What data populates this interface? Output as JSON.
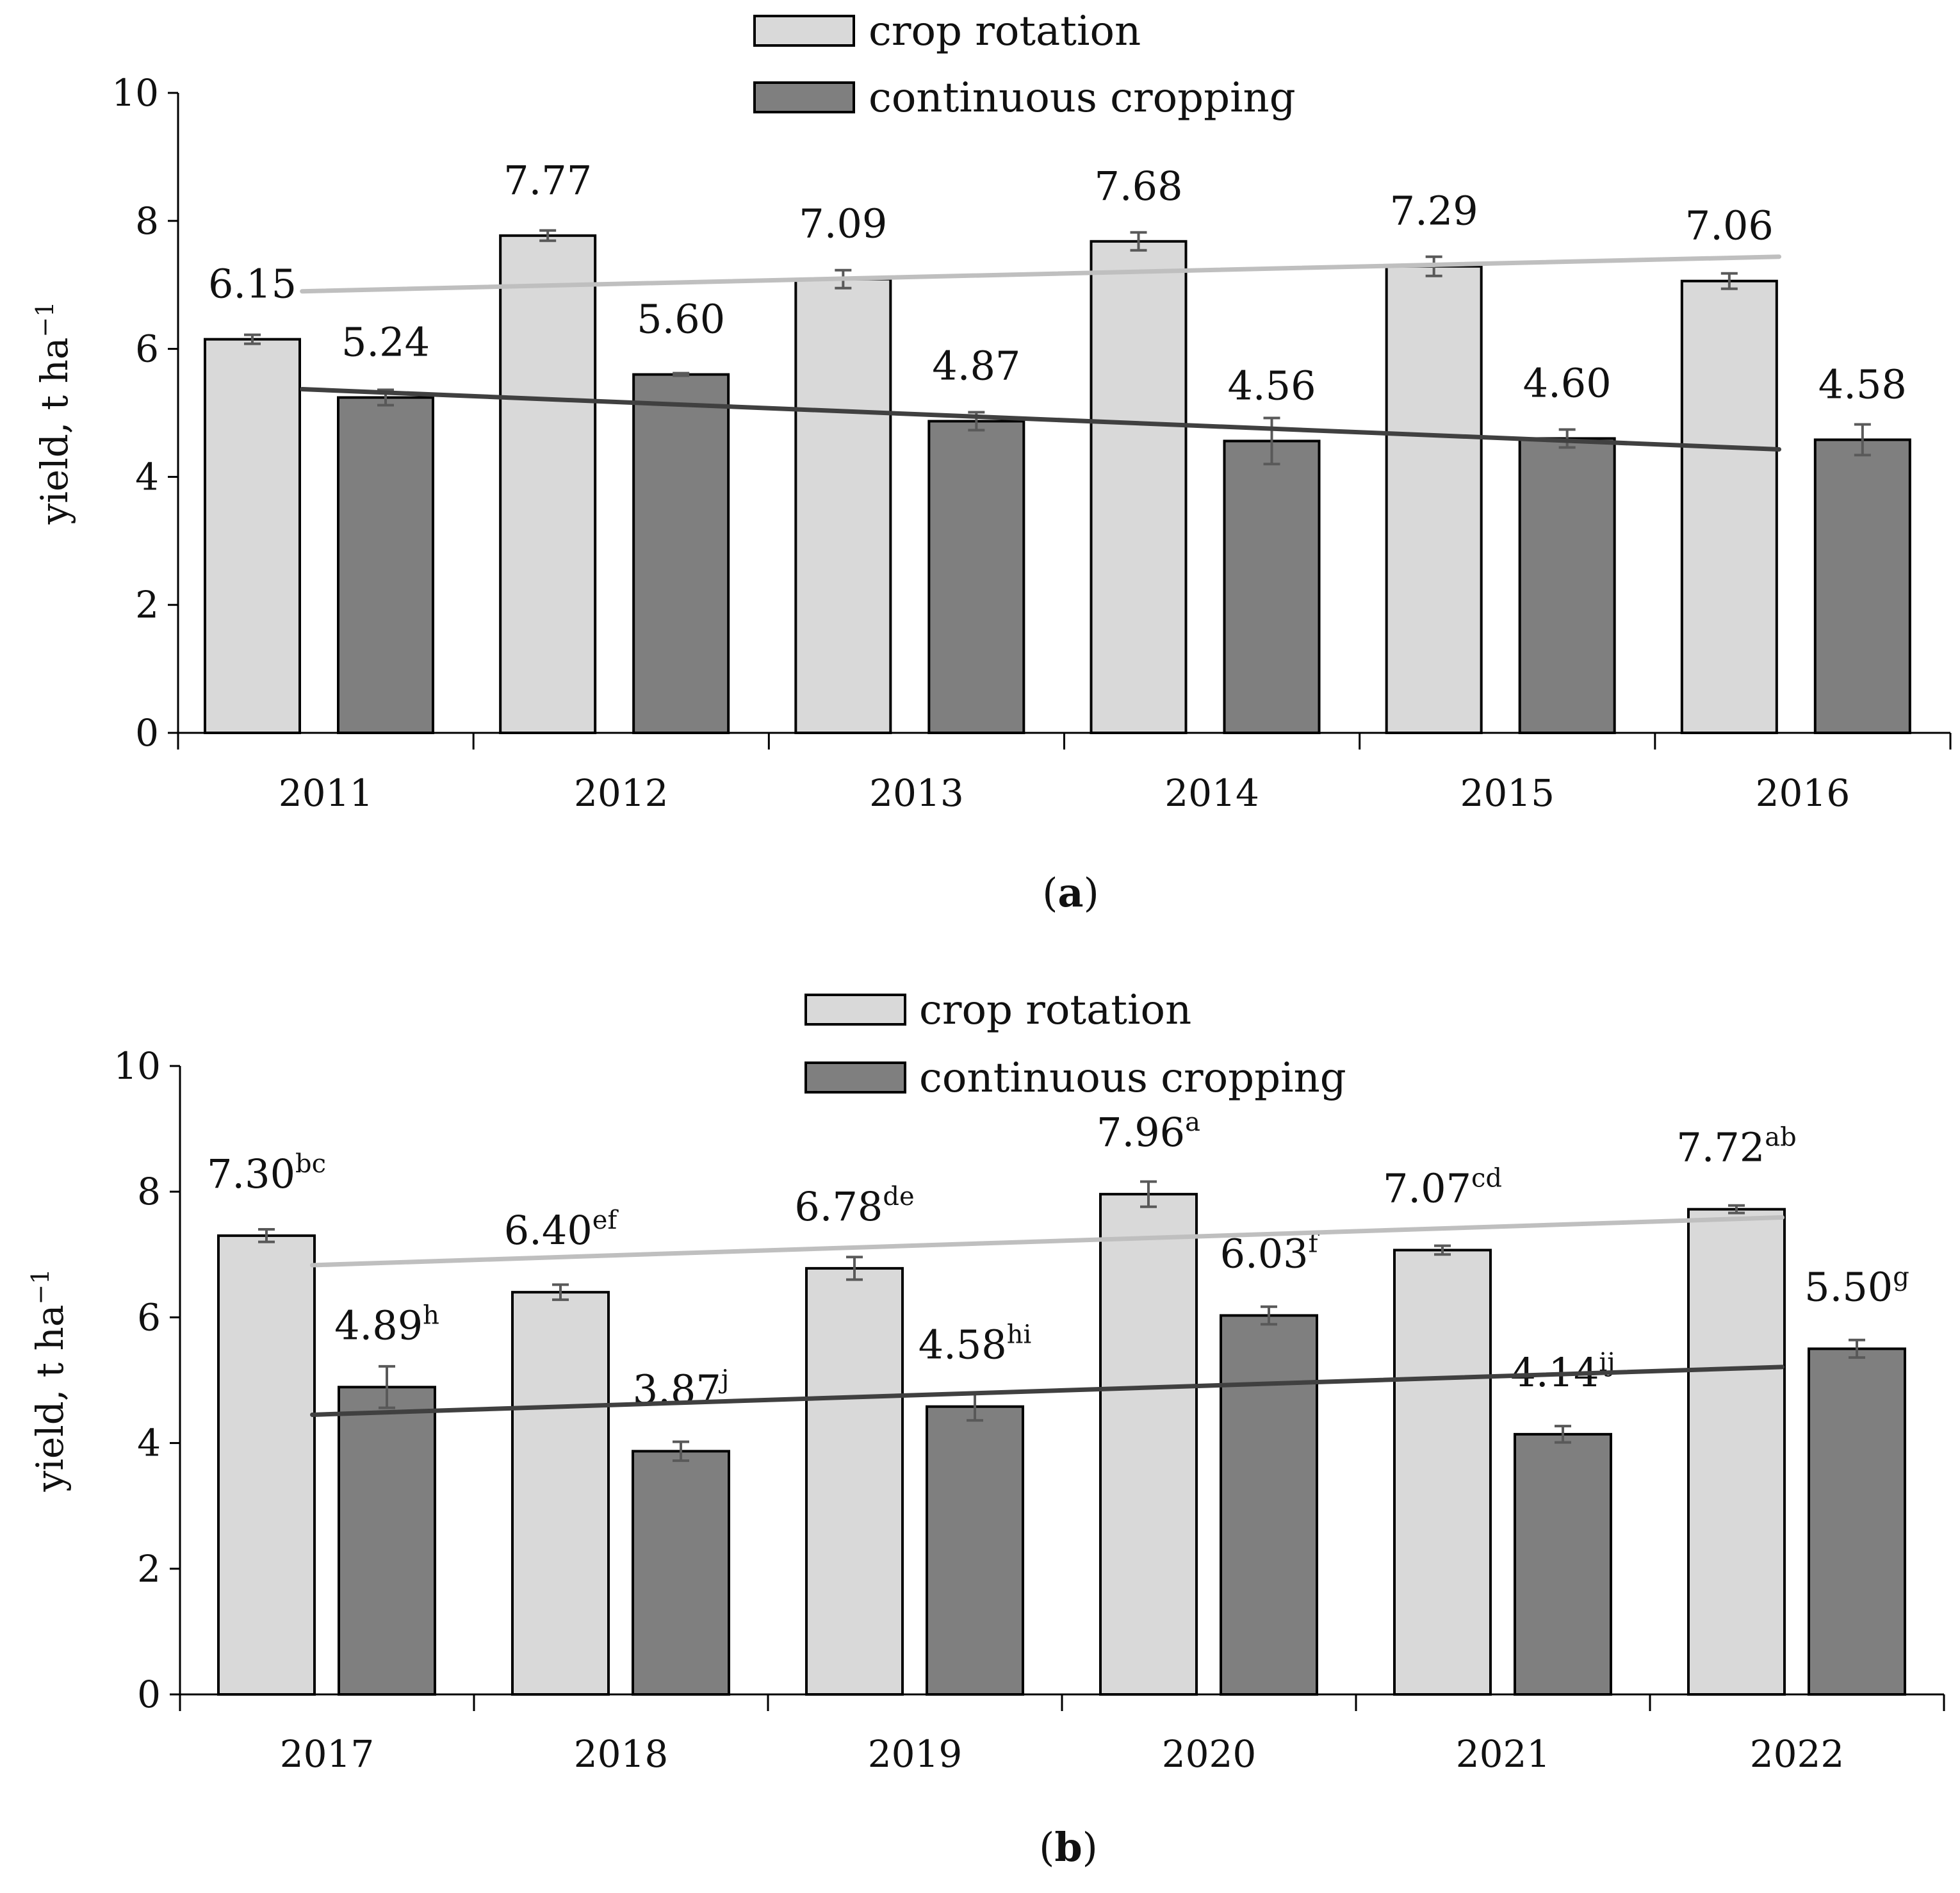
{
  "figure": {
    "background": "#ffffff"
  },
  "colors": {
    "crop_rotation_fill": "#d9d9d9",
    "continuous_fill": "#7f7f7f",
    "bar_stroke": "#000000",
    "crop_rotation_trend": "#bfbfbf",
    "continuous_trend": "#404040",
    "error_bar": "#595959",
    "axis": "#000000"
  },
  "chart_data": [
    {
      "type": "bar",
      "panel_label": "a",
      "title": "",
      "ylabel_main": "yield, t ha",
      "ylabel_sup": "−1",
      "xlabel": "",
      "ylim": [
        0,
        10
      ],
      "y_ticks": [
        "0",
        "2",
        "4",
        "6",
        "8",
        "10"
      ],
      "categories": [
        "2011",
        "2012",
        "2013",
        "2014",
        "2015",
        "2016"
      ],
      "legend_position": "top-center",
      "series": [
        {
          "name": "crop rotation",
          "values": [
            6.15,
            7.77,
            7.09,
            7.68,
            7.29,
            7.06
          ],
          "errors": [
            0.07,
            0.08,
            0.14,
            0.14,
            0.15,
            0.12
          ],
          "labels": [
            "6.15",
            "7.77",
            "7.09",
            "7.68",
            "7.29",
            "7.06"
          ],
          "superscripts": [
            "",
            "",
            "",
            "",
            "",
            ""
          ],
          "trend": [
            6.9,
            7.44
          ]
        },
        {
          "name": "continuous cropping",
          "values": [
            5.24,
            5.6,
            4.87,
            4.56,
            4.6,
            4.58
          ],
          "errors": [
            0.12,
            0.02,
            0.14,
            0.36,
            0.14,
            0.24
          ],
          "labels": [
            "5.24",
            "5.60",
            "4.87",
            "4.56",
            "4.60",
            "4.58"
          ],
          "superscripts": [
            "",
            "",
            "",
            "",
            "",
            ""
          ],
          "trend": [
            5.37,
            4.43
          ]
        }
      ]
    },
    {
      "type": "bar",
      "panel_label": "b",
      "title": "",
      "ylabel_main": "yield, t ha",
      "ylabel_sup": "−1",
      "xlabel": "",
      "ylim": [
        0,
        10
      ],
      "y_ticks": [
        "0",
        "2",
        "4",
        "6",
        "8",
        "10"
      ],
      "categories": [
        "2017",
        "2018",
        "2019",
        "2020",
        "2021",
        "2022"
      ],
      "legend_position": "top-center",
      "series": [
        {
          "name": "crop rotation",
          "values": [
            7.3,
            6.4,
            6.78,
            7.96,
            7.07,
            7.72
          ],
          "errors": [
            0.1,
            0.12,
            0.18,
            0.2,
            0.07,
            0.06
          ],
          "labels": [
            "7.30",
            "6.40",
            "6.78",
            "7.96",
            "7.07",
            "7.72"
          ],
          "superscripts": [
            "bc",
            "ef",
            "de",
            "a",
            "cd",
            "ab"
          ],
          "trend": [
            6.83,
            7.59
          ]
        },
        {
          "name": "continuous cropping",
          "values": [
            4.89,
            3.87,
            4.58,
            6.03,
            4.14,
            5.5
          ],
          "errors": [
            0.33,
            0.15,
            0.22,
            0.14,
            0.13,
            0.14
          ],
          "labels": [
            "4.89",
            "3.87",
            "4.58",
            "6.03",
            "4.14",
            "5.50"
          ],
          "superscripts": [
            "h",
            "j",
            "hi",
            "f",
            "ij",
            "g"
          ],
          "trend": [
            4.45,
            5.21
          ]
        }
      ]
    }
  ]
}
